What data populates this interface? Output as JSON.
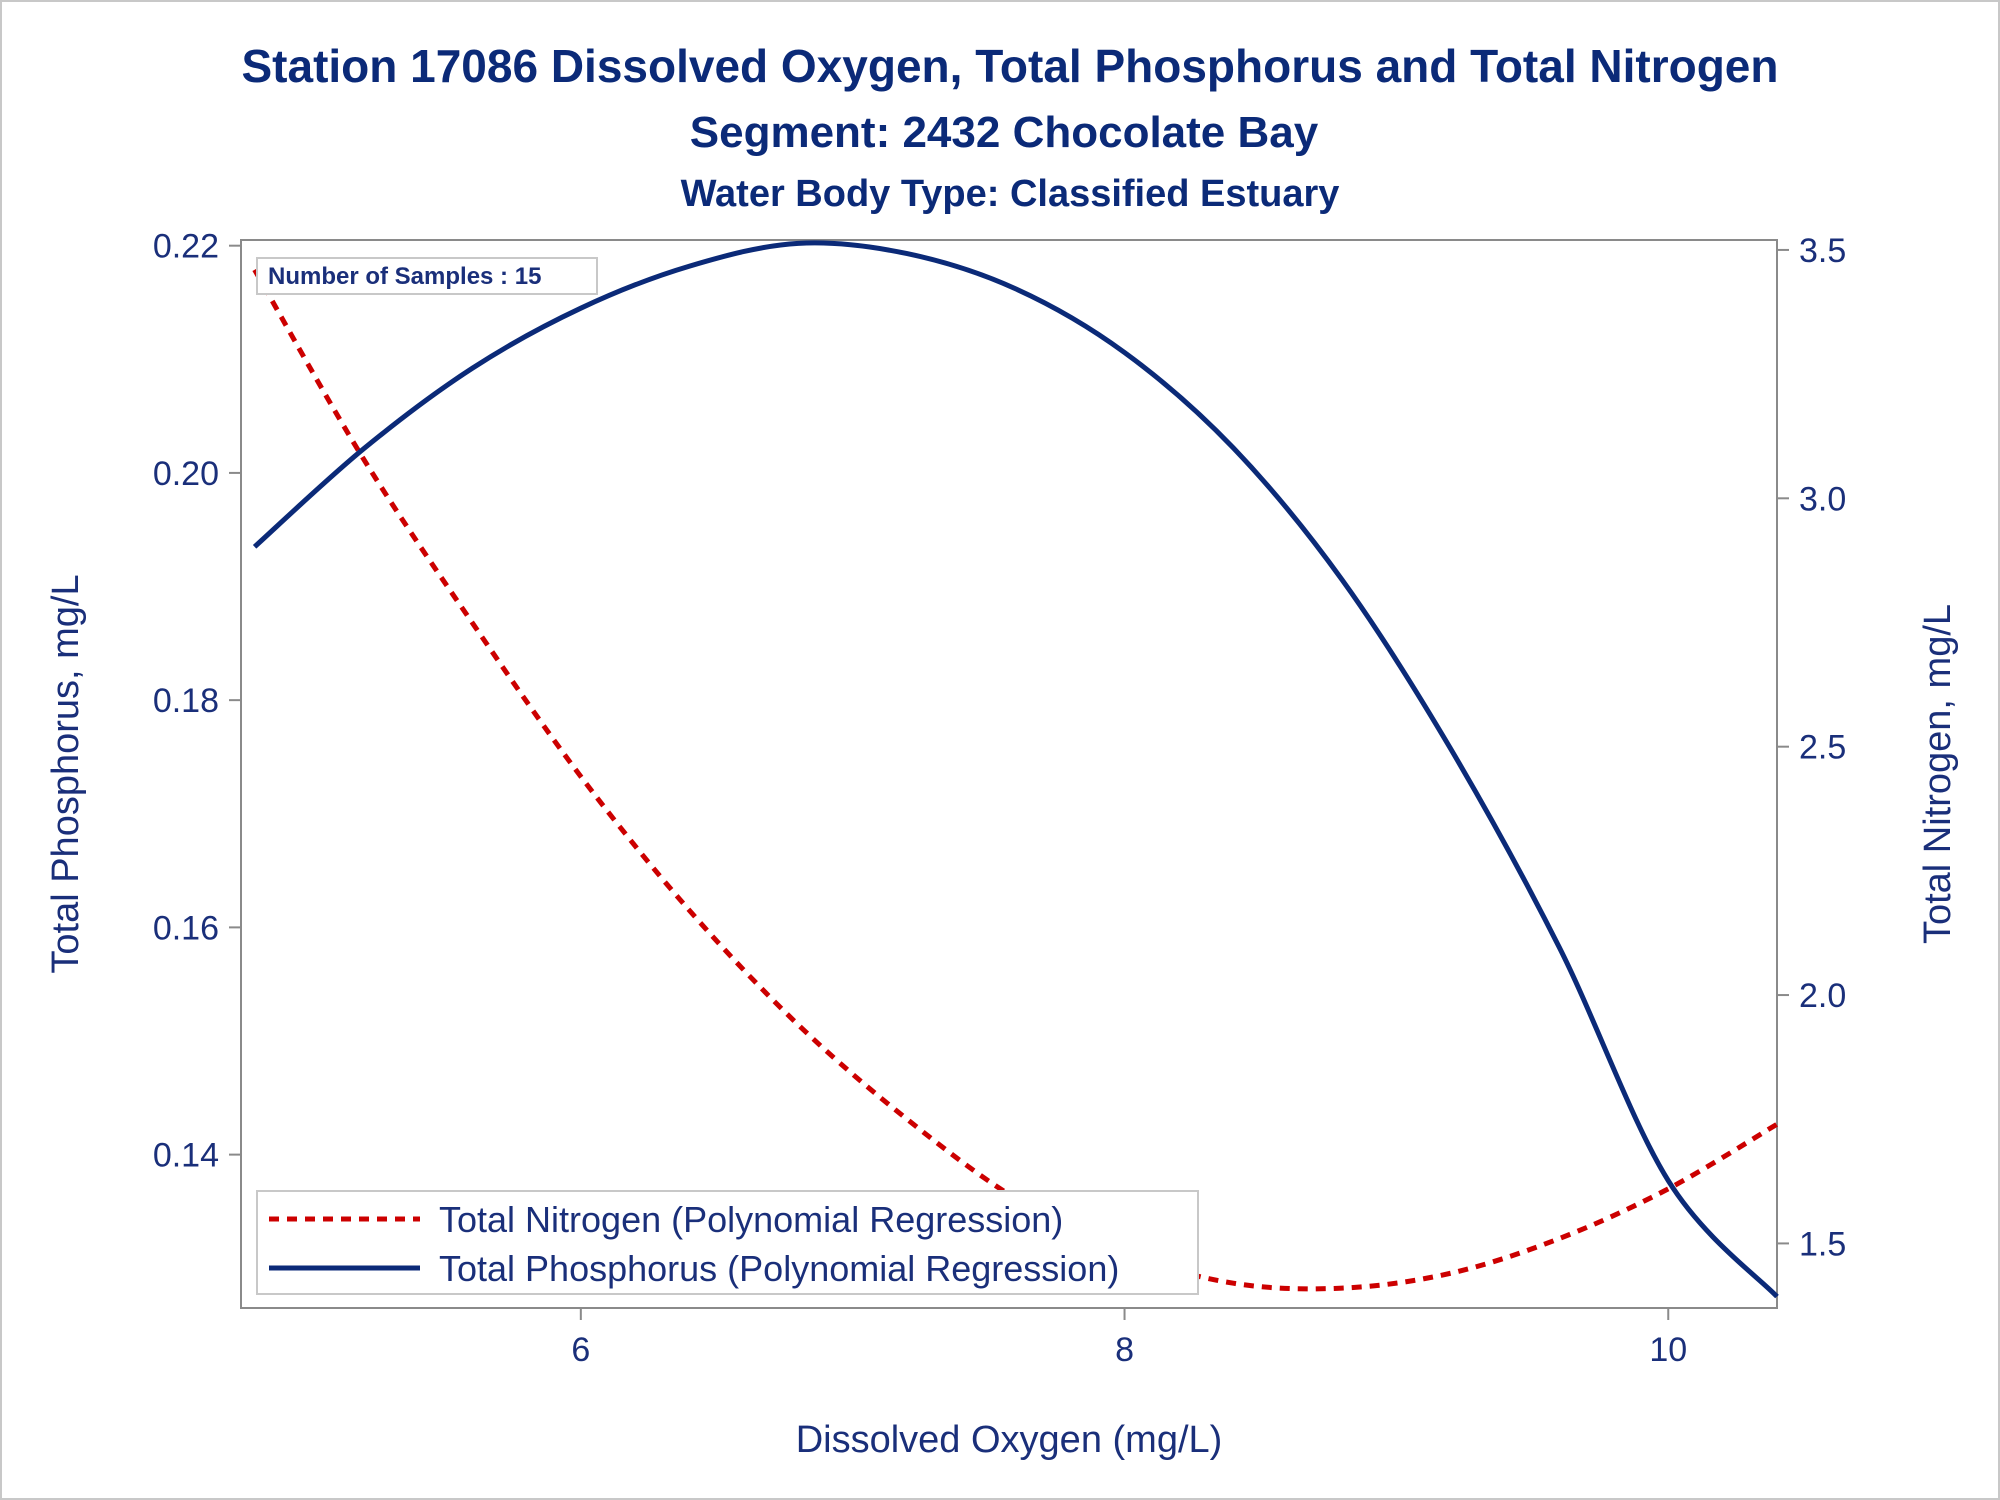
{
  "chart_data": {
    "type": "line",
    "title": "Station 17086  Dissolved Oxygen, Total Phosphorus and Total Nitrogen",
    "subtitle": "Segment: 2432  Chocolate Bay",
    "subtitle2": "Water Body Type: Classified Estuary",
    "xlabel": "Dissolved Oxygen (mg/L)",
    "ylabel": "Total Phosphorus, mg/L",
    "y2label": "Total Nitrogen, mg/L",
    "xlim": [
      4.75,
      10.4
    ],
    "ylim": [
      0.1265,
      0.2205
    ],
    "y2lim": [
      1.37,
      3.52
    ],
    "x_ticks": [
      6,
      8,
      10
    ],
    "x_tick_labels": [
      "6",
      "8",
      "10"
    ],
    "y_ticks": [
      0.14,
      0.16,
      0.18,
      0.2,
      0.22
    ],
    "y_tick_labels": [
      "0.14",
      "0.16",
      "0.18",
      "0.20",
      "0.22"
    ],
    "y2_ticks": [
      1.5,
      2.0,
      2.5,
      3.0,
      3.5
    ],
    "y2_tick_labels": [
      "1.5",
      "2.0",
      "2.5",
      "3.0",
      "3.5"
    ],
    "annotation": "Number of Samples : 15",
    "legend_position": "bottom-left",
    "grid": false,
    "series": [
      {
        "name": "Total Nitrogen (Polynomial Regression)",
        "axis": "right",
        "style": "dashed",
        "color": "#cc0000",
        "x": [
          4.8,
          5.2,
          5.6,
          6.0,
          6.4,
          6.8,
          7.2,
          7.6,
          8.0,
          8.4,
          8.8,
          9.2,
          9.6,
          10.0,
          10.4
        ],
        "y": [
          3.46,
          3.08,
          2.75,
          2.44,
          2.17,
          1.94,
          1.75,
          1.59,
          1.48,
          1.42,
          1.41,
          1.44,
          1.51,
          1.61,
          1.74
        ]
      },
      {
        "name": "Total Phosphorus (Polynomial Regression)",
        "axis": "left",
        "style": "solid",
        "color": "#0b2a78",
        "x": [
          4.8,
          5.2,
          5.6,
          6.0,
          6.4,
          6.8,
          7.2,
          7.6,
          8.0,
          8.4,
          8.8,
          9.2,
          9.6,
          10.0,
          10.4
        ],
        "y": [
          0.1935,
          0.2021,
          0.2092,
          0.2145,
          0.2182,
          0.2202,
          0.2193,
          0.2162,
          0.2106,
          0.2022,
          0.1906,
          0.1757,
          0.1582,
          0.1377,
          0.1275
        ]
      }
    ]
  }
}
